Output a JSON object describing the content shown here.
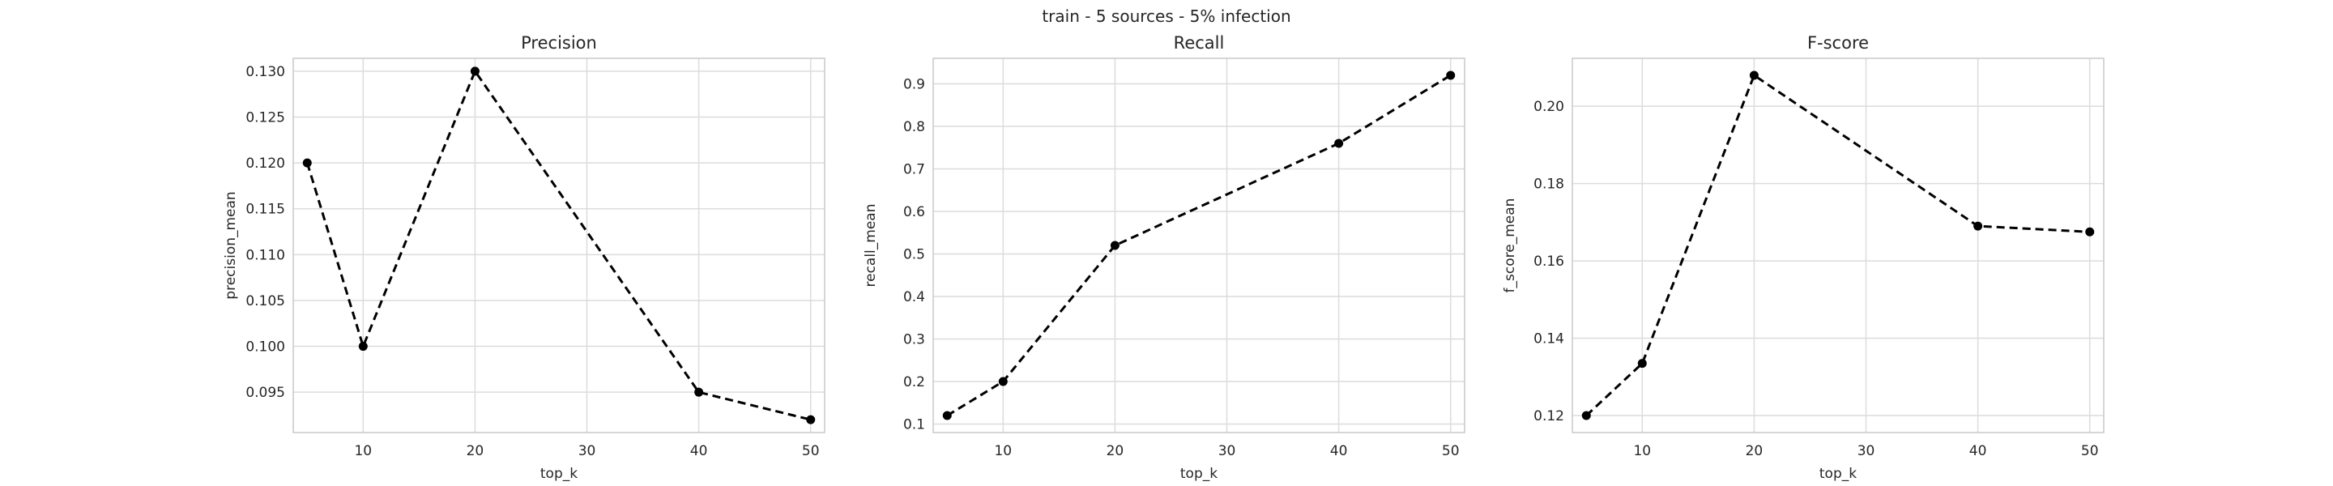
{
  "figure": {
    "suptitle": "train - 5 sources - 5% infection"
  },
  "chart_data": [
    {
      "type": "line",
      "title": "Precision",
      "xlabel": "top_k",
      "ylabel": "precision_mean",
      "x": [
        5,
        10,
        20,
        40,
        50
      ],
      "series": [
        {
          "values": [
            0.12,
            0.1,
            0.13,
            0.095,
            0.092
          ]
        }
      ],
      "xlim": [
        3.75,
        51.25
      ],
      "ylim": [
        0.0906,
        0.1314
      ],
      "xticks": [
        10,
        20,
        30,
        40,
        50
      ],
      "xtick_labels": [
        "10",
        "20",
        "30",
        "40",
        "50"
      ],
      "yticks": [
        0.095,
        0.1,
        0.105,
        0.11,
        0.115,
        0.12,
        0.125,
        0.13
      ],
      "ytick_labels": [
        "0.095",
        "0.100",
        "0.105",
        "0.110",
        "0.115",
        "0.120",
        "0.125",
        "0.130"
      ],
      "line_style": "dashed",
      "marker": "circle",
      "color": "#000000",
      "grid": true
    },
    {
      "type": "line",
      "title": "Recall",
      "xlabel": "top_k",
      "ylabel": "recall_mean",
      "x": [
        5,
        10,
        20,
        40,
        50
      ],
      "series": [
        {
          "values": [
            0.12,
            0.2,
            0.52,
            0.76,
            0.92
          ]
        }
      ],
      "xlim": [
        3.75,
        51.25
      ],
      "ylim": [
        0.08,
        0.96
      ],
      "xticks": [
        10,
        20,
        30,
        40,
        50
      ],
      "xtick_labels": [
        "10",
        "20",
        "30",
        "40",
        "50"
      ],
      "yticks": [
        0.1,
        0.2,
        0.3,
        0.4,
        0.5,
        0.6,
        0.7,
        0.8,
        0.9
      ],
      "ytick_labels": [
        "0.1",
        "0.2",
        "0.3",
        "0.4",
        "0.5",
        "0.6",
        "0.7",
        "0.8",
        "0.9"
      ],
      "line_style": "dashed",
      "marker": "circle",
      "color": "#000000",
      "grid": true
    },
    {
      "type": "line",
      "title": "F-score",
      "xlabel": "top_k",
      "ylabel": "f_score_mean",
      "x": [
        5,
        10,
        20,
        40,
        50
      ],
      "series": [
        {
          "values": [
            0.12,
            0.1335,
            0.208,
            0.169,
            0.1675
          ]
        }
      ],
      "xlim": [
        3.75,
        51.25
      ],
      "ylim": [
        0.1156,
        0.2124
      ],
      "xticks": [
        10,
        20,
        30,
        40,
        50
      ],
      "xtick_labels": [
        "10",
        "20",
        "30",
        "40",
        "50"
      ],
      "yticks": [
        0.12,
        0.14,
        0.16,
        0.18,
        0.2
      ],
      "ytick_labels": [
        "0.12",
        "0.14",
        "0.16",
        "0.18",
        "0.20"
      ],
      "line_style": "dashed",
      "marker": "circle",
      "color": "#000000",
      "grid": true
    }
  ]
}
